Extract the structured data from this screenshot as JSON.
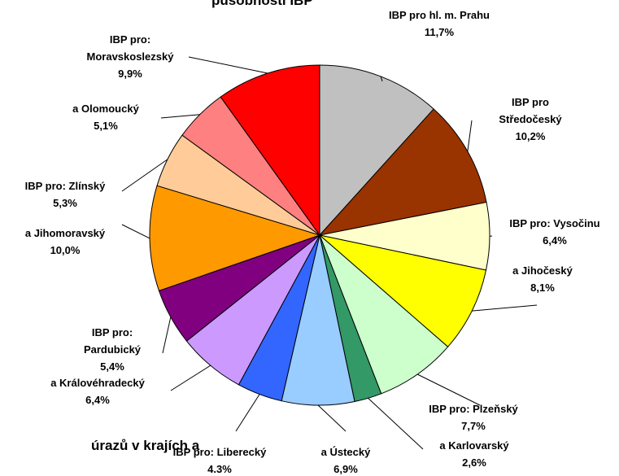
{
  "chart_data": {
    "type": "pie",
    "title": "působnosti IBP",
    "caption": "úrazů v krajích a",
    "categories": [
      "IBP pro hl. m. Prahu",
      "IBP pro Středočeský",
      "IBP pro: Vysočinu",
      "a Jihočeský",
      "IBP pro: Plzeňský",
      "a Karlovarský",
      "a Ústecký",
      "IBP pro: Liberecký",
      "a Královéhradecký",
      "IBP pro: Pardubický",
      "a Jihomoravský",
      "IBP pro: Zlínský",
      "a Olomoucký",
      "IBP pro: Moravskoslezský"
    ],
    "values": [
      11.7,
      10.2,
      6.4,
      8.1,
      7.7,
      2.6,
      6.9,
      4.3,
      6.4,
      5.4,
      10.0,
      5.3,
      5.1,
      9.9
    ],
    "value_labels": [
      "11,7%",
      "10,2%",
      "6,4%",
      "8,1%",
      "7,7%",
      "2,6%",
      "6,9%",
      "4.3%",
      "6,4%",
      "5,4%",
      "10,0%",
      "5,3%",
      "5,1%",
      "9,9%"
    ],
    "colors": [
      "#c0c0c0",
      "#993300",
      "#ffffcc",
      "#ffff00",
      "#ccffcc",
      "#339966",
      "#99ccff",
      "#3366ff",
      "#cc99ff",
      "#800080",
      "#ff9900",
      "#ffcc99",
      "#ff8080",
      "#ff0000"
    ]
  }
}
